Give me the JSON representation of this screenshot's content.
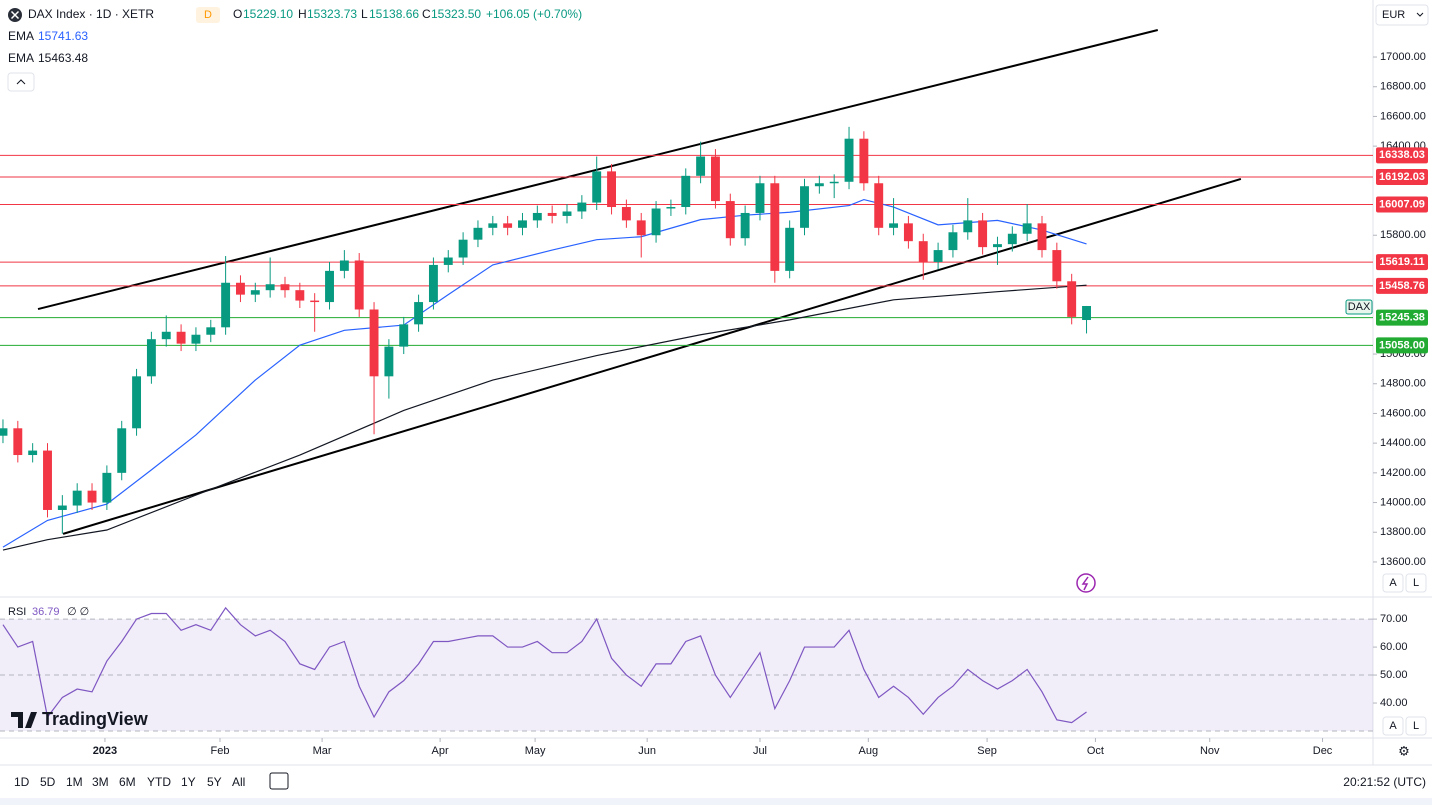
{
  "header": {
    "symbol": "DAX Index · 1D · XETR",
    "interval": "D",
    "ohlc": [
      {
        "key": "O",
        "value": "15229.10"
      },
      {
        "key": "H",
        "value": "15323.73"
      },
      {
        "key": "L",
        "value": "15138.66"
      },
      {
        "key": "C",
        "value": "15323.50"
      }
    ],
    "change": "+106.05 (+0.70%)",
    "currency": "EUR"
  },
  "chart_data": [
    {
      "type": "candlestick",
      "xlim": [
        -0.2,
        92.3
      ],
      "ylim": [
        13364,
        17384
      ],
      "xticks": [
        {
          "value": 6.87,
          "label": "2023"
        },
        {
          "value": 14.62,
          "label": "Feb"
        },
        {
          "value": 21.5,
          "label": "Mar"
        },
        {
          "value": 29.45,
          "label": "Apr"
        },
        {
          "value": 35.85,
          "label": "May"
        },
        {
          "value": 43.4,
          "label": "Jun"
        },
        {
          "value": 51.0,
          "label": "Jul"
        },
        {
          "value": 58.3,
          "label": "Aug"
        },
        {
          "value": 66.3,
          "label": "Sep"
        },
        {
          "value": 73.6,
          "label": "Oct"
        },
        {
          "value": 81.3,
          "label": "Nov"
        },
        {
          "value": 88.9,
          "label": "Dec"
        }
      ],
      "yticks": [
        {
          "value": 17000,
          "label": "17000.00"
        },
        {
          "value": 16800,
          "label": "16800.00"
        },
        {
          "value": 16600,
          "label": "16600.00"
        },
        {
          "value": 16400,
          "label": "16400.00"
        },
        {
          "value": 15800,
          "label": "15800.00"
        },
        {
          "value": 15000,
          "label": "15000.00"
        },
        {
          "value": 14800,
          "label": "14800.00"
        },
        {
          "value": 14600,
          "label": "14600.00"
        },
        {
          "value": 14400,
          "label": "14400.00"
        },
        {
          "value": 14200,
          "label": "14200.00"
        },
        {
          "value": 14000,
          "label": "14000.00"
        },
        {
          "value": 13800,
          "label": "13800.00"
        },
        {
          "value": 13600,
          "label": "13600.00"
        }
      ],
      "series": [
        {
          "name": "DAX",
          "type": "candlestick",
          "up_color": "#089981",
          "down_color": "#f23645",
          "values": [
            [
              14450,
              14560,
              14400,
              14500
            ],
            [
              14500,
              14550,
              14270,
              14320
            ],
            [
              14320,
              14400,
              14270,
              14350
            ],
            [
              14350,
              14400,
              13900,
              13950
            ],
            [
              13950,
              14050,
              13790,
              13980
            ],
            [
              13980,
              14130,
              13930,
              14080
            ],
            [
              14080,
              14130,
              13950,
              14000
            ],
            [
              14000,
              14250,
              13950,
              14200
            ],
            [
              14200,
              14550,
              14150,
              14500
            ],
            [
              14500,
              14900,
              14450,
              14850
            ],
            [
              14850,
              15150,
              14800,
              15100
            ],
            [
              15100,
              15260,
              15050,
              15150
            ],
            [
              15150,
              15200,
              15020,
              15070
            ],
            [
              15070,
              15180,
              15020,
              15130
            ],
            [
              15130,
              15230,
              15080,
              15180
            ],
            [
              15180,
              15660,
              15130,
              15480
            ],
            [
              15480,
              15530,
              15350,
              15400
            ],
            [
              15400,
              15480,
              15350,
              15430
            ],
            [
              15430,
              15650,
              15380,
              15470
            ],
            [
              15470,
              15520,
              15380,
              15430
            ],
            [
              15430,
              15480,
              15310,
              15360
            ],
            [
              15360,
              15410,
              15150,
              15350
            ],
            [
              15350,
              15620,
              15300,
              15560
            ],
            [
              15560,
              15700,
              15510,
              15630
            ],
            [
              15630,
              15680,
              15250,
              15300
            ],
            [
              15300,
              15350,
              14460,
              14850
            ],
            [
              14850,
              15100,
              14700,
              15050
            ],
            [
              15050,
              15250,
              15000,
              15200
            ],
            [
              15200,
              15400,
              15150,
              15350
            ],
            [
              15350,
              15650,
              15300,
              15600
            ],
            [
              15600,
              15700,
              15550,
              15650
            ],
            [
              15650,
              15820,
              15600,
              15770
            ],
            [
              15770,
              15900,
              15720,
              15850
            ],
            [
              15850,
              15930,
              15800,
              15880
            ],
            [
              15880,
              15930,
              15800,
              15850
            ],
            [
              15850,
              15950,
              15800,
              15900
            ],
            [
              15900,
              16000,
              15850,
              15950
            ],
            [
              15950,
              16000,
              15880,
              15930
            ],
            [
              15930,
              16010,
              15880,
              15960
            ],
            [
              15960,
              16070,
              15910,
              16020
            ],
            [
              16020,
              16330,
              15970,
              16230
            ],
            [
              16230,
              16280,
              15940,
              15990
            ],
            [
              15990,
              16040,
              15850,
              15900
            ],
            [
              15900,
              15950,
              15650,
              15800
            ],
            [
              15800,
              16030,
              15750,
              15980
            ],
            [
              15980,
              16040,
              15930,
              15990
            ],
            [
              15990,
              16250,
              15940,
              16200
            ],
            [
              16200,
              16430,
              16150,
              16330
            ],
            [
              16330,
              16380,
              15980,
              16030
            ],
            [
              16030,
              16080,
              15730,
              15780
            ],
            [
              15780,
              16000,
              15730,
              15950
            ],
            [
              15950,
              16200,
              15900,
              16150
            ],
            [
              16150,
              16200,
              15480,
              15560
            ],
            [
              15560,
              15900,
              15510,
              15850
            ],
            [
              15850,
              16180,
              15800,
              16130
            ],
            [
              16130,
              16200,
              16080,
              16150
            ],
            [
              16150,
              16210,
              16050,
              16160
            ],
            [
              16160,
              16530,
              16110,
              16450
            ],
            [
              16450,
              16500,
              16100,
              16150
            ],
            [
              16150,
              16200,
              15800,
              15850
            ],
            [
              15850,
              16050,
              15800,
              15880
            ],
            [
              15880,
              15930,
              15710,
              15760
            ],
            [
              15760,
              15810,
              15500,
              15620
            ],
            [
              15620,
              15750,
              15570,
              15700
            ],
            [
              15700,
              15870,
              15650,
              15820
            ],
            [
              15820,
              16050,
              15770,
              15900
            ],
            [
              15900,
              15950,
              15670,
              15720
            ],
            [
              15720,
              15790,
              15600,
              15740
            ],
            [
              15740,
              15860,
              15690,
              15810
            ],
            [
              15810,
              16010,
              15760,
              15880
            ],
            [
              15880,
              15930,
              15650,
              15700
            ],
            [
              15700,
              15750,
              15440,
              15490
            ],
            [
              15490,
              15540,
              15200,
              15250
            ],
            [
              15229.1,
              15323.73,
              15138.66,
              15323.5
            ]
          ]
        },
        {
          "name": "EMA",
          "type": "line",
          "color": "#2962ff",
          "x": [
            0,
            3,
            7,
            10,
            13,
            17,
            20,
            23,
            27,
            30,
            33,
            37,
            40,
            43,
            47,
            50,
            53,
            57,
            58,
            60,
            63,
            67,
            70,
            73
          ],
          "values": [
            13700,
            13880,
            13990,
            14220,
            14455,
            14825,
            15060,
            15160,
            15195,
            15400,
            15600,
            15700,
            15770,
            15790,
            15905,
            15935,
            15955,
            16000,
            16040,
            15990,
            15870,
            15900,
            15835,
            15741.63
          ]
        },
        {
          "name": "EMA",
          "type": "line",
          "color": "#131722",
          "x": [
            0,
            3,
            7,
            13,
            20,
            27,
            33,
            40,
            47,
            53,
            60,
            67,
            73
          ],
          "values": [
            13680,
            13750,
            13815,
            14050,
            14320,
            14620,
            14825,
            14990,
            15130,
            15230,
            15365,
            15420,
            15463.48
          ]
        }
      ],
      "levels": {
        "values": [
          16338.03,
          16192.03,
          16007.09,
          15619.11,
          15458.76,
          15245.38,
          15058
        ],
        "value_labels": [
          "16338.03",
          "16192.03",
          "16007.09",
          "15619.11",
          "15458.76",
          "15245.38",
          "15058.00"
        ],
        "colors": [
          "#f23645",
          "#f23645",
          "#f23645",
          "#f23645",
          "#f23645",
          "#22ab33",
          "#22ab33"
        ]
      },
      "trendlines": [
        {
          "x": [
            2.36,
            77.8
          ],
          "y": [
            15303,
            17182
          ]
        },
        {
          "x": [
            4.05,
            83.4
          ],
          "y": [
            13789,
            16179
          ]
        }
      ]
    },
    {
      "type": "line",
      "ylim": [
        27.5,
        77.9
      ],
      "yticks": [
        {
          "value": 70,
          "label": "70.00"
        },
        {
          "value": 60,
          "label": "60.00"
        },
        {
          "value": 50,
          "label": "50.00"
        },
        {
          "value": 40,
          "label": "40.00"
        }
      ],
      "bands": [
        30,
        50,
        70
      ],
      "legend_extra": "∅ ∅",
      "series": [
        {
          "name": "RSI",
          "type": "line",
          "color": "#7e57c2",
          "values": [
            68,
            60,
            62,
            35,
            42,
            45,
            44,
            55,
            62,
            70,
            72,
            72,
            66,
            68,
            66,
            74,
            68,
            64,
            66,
            62,
            54,
            52,
            60,
            62,
            46,
            35,
            44,
            48,
            54,
            62,
            62,
            63,
            64,
            64,
            60,
            60,
            62,
            58,
            58,
            62,
            70,
            56,
            50,
            46,
            54,
            54,
            62,
            64,
            50,
            42,
            50,
            58,
            38,
            48,
            60,
            60,
            60,
            66,
            52,
            42,
            46,
            42,
            36,
            42,
            46,
            52,
            48,
            45,
            48,
            52,
            44,
            34,
            33,
            36.79
          ]
        }
      ]
    }
  ],
  "toolbar": {
    "ranges": [
      "1D",
      "5D",
      "1M",
      "3M",
      "6M",
      "YTD",
      "1Y",
      "5Y",
      "All"
    ],
    "clock": "20:21:52 (UTC)"
  },
  "scale_buttons": [
    "A",
    "L"
  ],
  "logo": "TradingView"
}
